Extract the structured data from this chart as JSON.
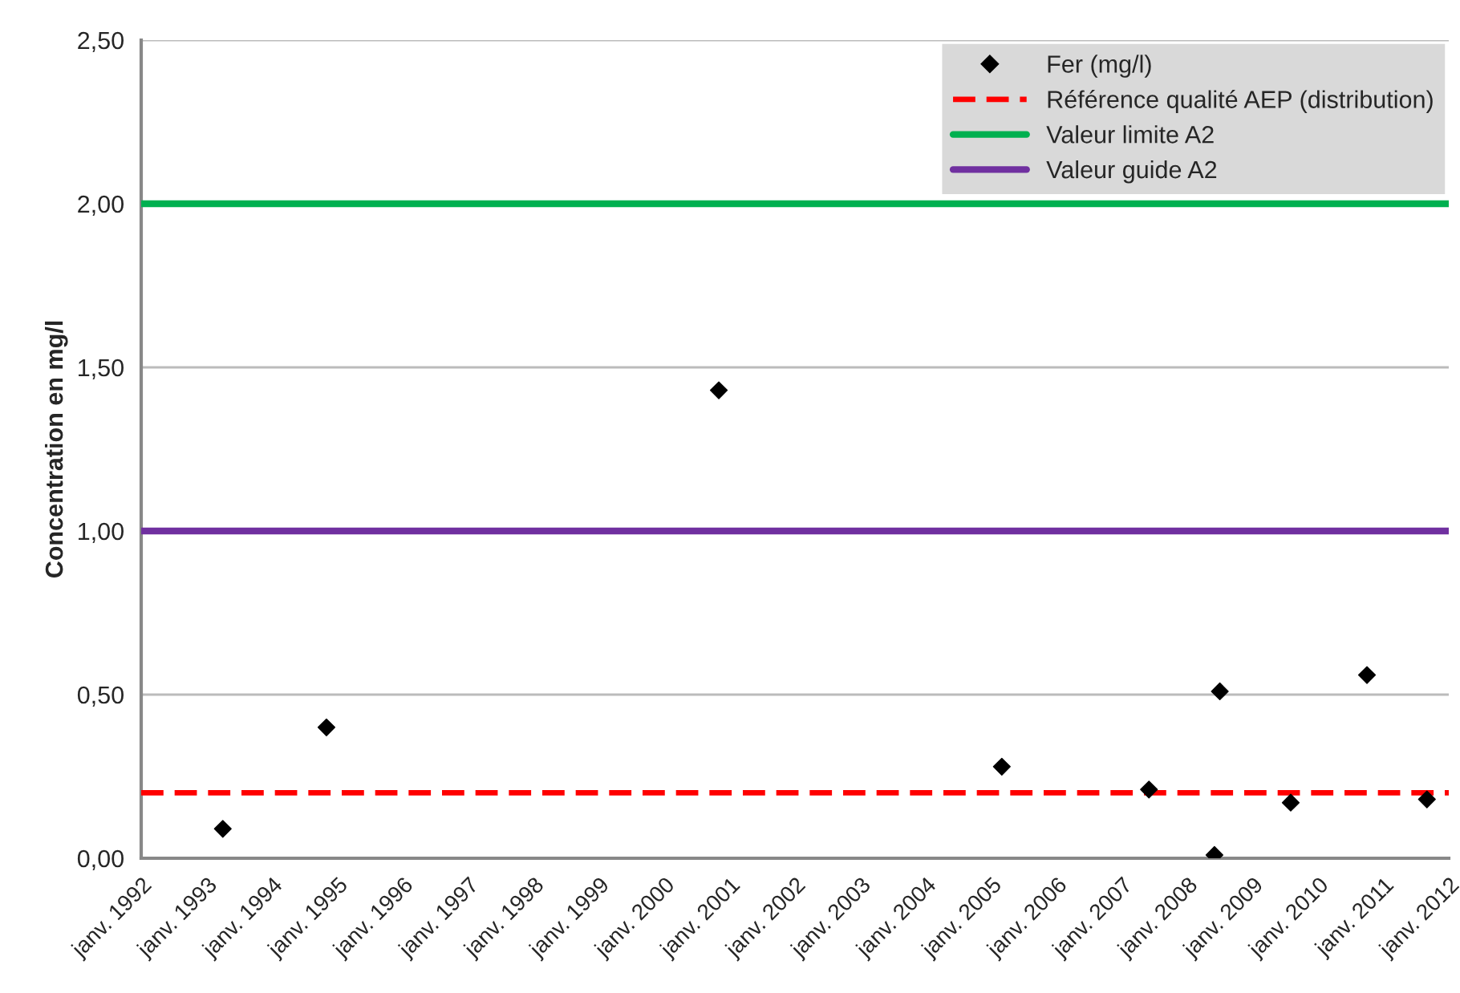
{
  "chart_data": {
    "type": "scatter",
    "ylabel": "Concentration en mg/l",
    "series": [
      {
        "name": "Fer (mg/l)",
        "color": "#000000",
        "marker": "diamond",
        "x": [
          "1993-04",
          "1994-11",
          "2000-11",
          "2005-03",
          "2007-06",
          "2008-06",
          "2008-07",
          "2009-08",
          "2010-10",
          "2011-09"
        ],
        "values": [
          0.09,
          0.4,
          1.43,
          0.28,
          0.21,
          0.01,
          0.51,
          0.17,
          0.56,
          0.18
        ]
      }
    ],
    "ref_lines": [
      {
        "axis": "y",
        "value": 0.2,
        "label": "Référence qualité AEP (distribution)",
        "color": "#ff0000",
        "line_style": "dashed"
      },
      {
        "axis": "y",
        "value": 2.0,
        "label": "Valeur limite A2",
        "color": "#00b050",
        "line_style": "solid"
      },
      {
        "axis": "y",
        "value": 1.0,
        "label": "Valeur guide A2",
        "color": "#7030a0",
        "line_style": "solid"
      }
    ],
    "xlim": [
      "1992-01",
      "2012-01"
    ],
    "xticks": [
      {
        "value": "1992-01",
        "label": "janv. 1992"
      },
      {
        "value": "1993-01",
        "label": "janv. 1993"
      },
      {
        "value": "1994-01",
        "label": "janv. 1994"
      },
      {
        "value": "1995-01",
        "label": "janv. 1995"
      },
      {
        "value": "1996-01",
        "label": "janv. 1996"
      },
      {
        "value": "1997-01",
        "label": "janv. 1997"
      },
      {
        "value": "1998-01",
        "label": "janv. 1998"
      },
      {
        "value": "1999-01",
        "label": "janv. 1999"
      },
      {
        "value": "2000-01",
        "label": "janv. 2000"
      },
      {
        "value": "2001-01",
        "label": "janv. 2001"
      },
      {
        "value": "2002-01",
        "label": "janv. 2002"
      },
      {
        "value": "2003-01",
        "label": "janv. 2003"
      },
      {
        "value": "2004-01",
        "label": "janv. 2004"
      },
      {
        "value": "2005-01",
        "label": "janv. 2005"
      },
      {
        "value": "2006-01",
        "label": "janv. 2006"
      },
      {
        "value": "2007-01",
        "label": "janv. 2007"
      },
      {
        "value": "2008-01",
        "label": "janv. 2008"
      },
      {
        "value": "2009-01",
        "label": "janv. 2009"
      },
      {
        "value": "2010-01",
        "label": "janv. 2010"
      },
      {
        "value": "2011-01",
        "label": "janv. 2011"
      },
      {
        "value": "2012-01",
        "label": "janv. 2012"
      }
    ],
    "ylim": [
      0,
      2.5
    ],
    "yticks": [
      {
        "value": 0,
        "label": "0,00"
      },
      {
        "value": 0.5,
        "label": "0,50"
      },
      {
        "value": 1.0,
        "label": "1,00"
      },
      {
        "value": 1.5,
        "label": "1,50"
      },
      {
        "value": 2.0,
        "label": "2,00"
      },
      {
        "value": 2.5,
        "label": "2,50"
      }
    ],
    "grid": "y",
    "legend": "top right"
  }
}
